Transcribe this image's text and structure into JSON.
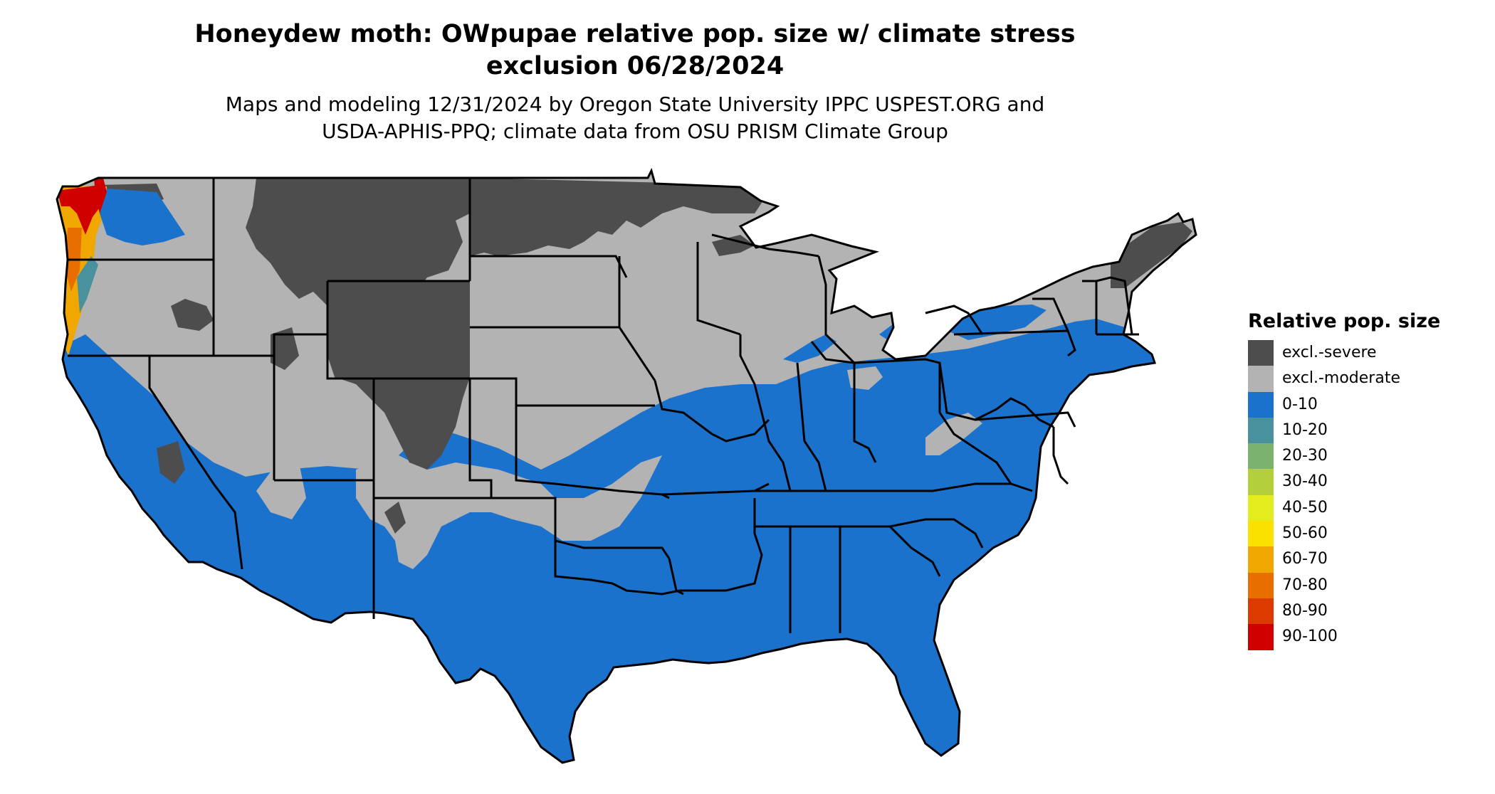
{
  "title": {
    "line1": "Honeydew moth: OWpupae relative pop. size w/ climate stress",
    "line2": "exclusion 06/28/2024"
  },
  "subtitle": {
    "line1": "Maps and modeling 12/31/2024 by Oregon State University IPPC USPEST.ORG and",
    "line2": "USDA-APHIS-PPQ; climate data from OSU PRISM Climate Group"
  },
  "legend": {
    "title": "Relative pop. size",
    "items": [
      {
        "label": "excl.-severe",
        "color": "#4d4d4d"
      },
      {
        "label": "excl.-moderate",
        "color": "#b3b3b3"
      },
      {
        "label": "0-10",
        "color": "#1a72cc"
      },
      {
        "label": "10-20",
        "color": "#4a919e"
      },
      {
        "label": "20-30",
        "color": "#7cb26f"
      },
      {
        "label": "30-40",
        "color": "#b3cf3c"
      },
      {
        "label": "40-50",
        "color": "#e3ec1c"
      },
      {
        "label": "50-60",
        "color": "#fae100"
      },
      {
        "label": "60-70",
        "color": "#f0a800"
      },
      {
        "label": "70-80",
        "color": "#e86e00"
      },
      {
        "label": "80-90",
        "color": "#dd3a00"
      },
      {
        "label": "90-100",
        "color": "#d10000"
      }
    ]
  },
  "map": {
    "region": "contiguous-united-states",
    "colors": {
      "excl_severe": "#4d4d4d",
      "excl_moderate": "#b3b3b3",
      "low": "#1a72cc",
      "mid": "#f0a800",
      "high": "#d10000",
      "border": "#000000"
    }
  }
}
